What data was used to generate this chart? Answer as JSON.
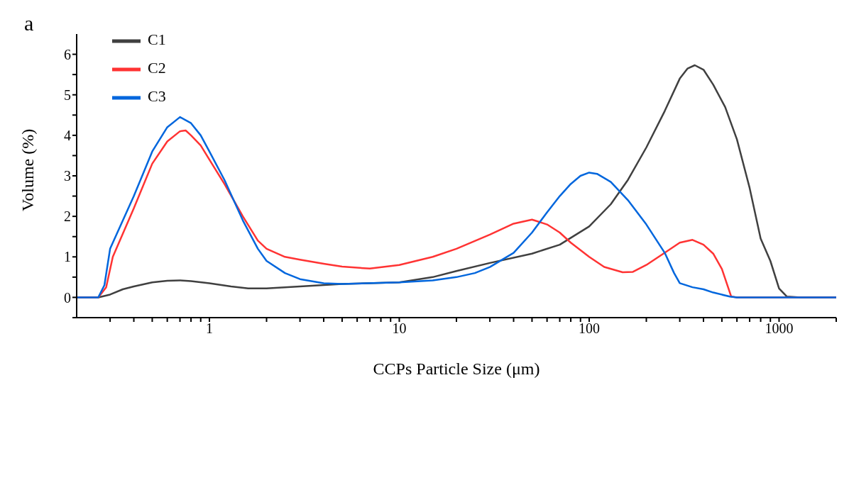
{
  "chart_data": {
    "type": "line",
    "xlabel": "CCPs Particle Size (μm)",
    "ylabel": "Volume (%)",
    "annotations": [
      "a"
    ],
    "log": "x",
    "grid": false,
    "legend": "top left",
    "xlim": [
      0.2,
      2000
    ],
    "xticks": [
      {
        "value": 0.3,
        "label": null
      },
      {
        "value": 0.4,
        "label": null
      },
      {
        "value": 0.5,
        "label": null
      },
      {
        "value": 0.6,
        "label": null
      },
      {
        "value": 0.7,
        "label": null
      },
      {
        "value": 0.8,
        "label": null
      },
      {
        "value": 0.9,
        "label": null
      },
      1,
      {
        "value": 2,
        "label": null
      },
      {
        "value": 3,
        "label": null
      },
      {
        "value": 4,
        "label": null
      },
      {
        "value": 5,
        "label": null
      },
      {
        "value": 6,
        "label": null
      },
      {
        "value": 7,
        "label": null
      },
      {
        "value": 8,
        "label": null
      },
      {
        "value": 9,
        "label": null
      },
      10,
      {
        "value": 20,
        "label": null
      },
      {
        "value": 30,
        "label": null
      },
      {
        "value": 40,
        "label": null
      },
      {
        "value": 50,
        "label": null
      },
      {
        "value": 60,
        "label": null
      },
      {
        "value": 70,
        "label": null
      },
      {
        "value": 80,
        "label": null
      },
      {
        "value": 90,
        "label": null
      },
      100,
      {
        "value": 200,
        "label": null
      },
      {
        "value": 300,
        "label": null
      },
      {
        "value": 400,
        "label": null
      },
      {
        "value": 500,
        "label": null
      },
      {
        "value": 600,
        "label": null
      },
      {
        "value": 700,
        "label": null
      },
      {
        "value": 800,
        "label": null
      },
      {
        "value": 900,
        "label": null
      },
      1000,
      {
        "value": 2000,
        "label": null
      }
    ],
    "ylim": [
      -0.5,
      6.5
    ],
    "yticks": [
      {
        "value": -0.5,
        "label": null
      },
      0,
      {
        "value": 0.5,
        "label": null
      },
      1,
      {
        "value": 1.5,
        "label": null
      },
      2,
      {
        "value": 2.5,
        "label": null
      },
      3,
      {
        "value": 3.5,
        "label": null
      },
      4,
      {
        "value": 4.5,
        "label": null
      },
      5,
      {
        "value": 5.5,
        "label": null
      },
      6
    ],
    "series": [
      {
        "name": "C1",
        "color": "#404040",
        "x": [
          0.2,
          0.26,
          0.3,
          0.35,
          0.4,
          0.5,
          0.6,
          0.7,
          0.8,
          1,
          1.3,
          1.6,
          2,
          3,
          5,
          10,
          15,
          20,
          30,
          50,
          70,
          100,
          130,
          160,
          200,
          250,
          300,
          330,
          360,
          400,
          450,
          520,
          600,
          700,
          800,
          900,
          1000,
          1100,
          1300,
          2000
        ],
        "values": [
          0,
          0,
          0.07,
          0.2,
          0.27,
          0.37,
          0.41,
          0.42,
          0.4,
          0.35,
          0.27,
          0.22,
          0.22,
          0.27,
          0.33,
          0.37,
          0.5,
          0.65,
          0.85,
          1.08,
          1.3,
          1.75,
          2.3,
          2.9,
          3.7,
          4.6,
          5.4,
          5.65,
          5.73,
          5.62,
          5.25,
          4.7,
          3.9,
          2.7,
          1.45,
          0.9,
          0.22,
          0.02,
          0,
          0
        ]
      },
      {
        "name": "C2",
        "color": "#ff3333",
        "x": [
          0.2,
          0.26,
          0.286,
          0.31,
          0.4,
          0.5,
          0.6,
          0.7,
          0.75,
          0.8,
          0.9,
          1,
          1.2,
          1.5,
          1.8,
          2,
          2.5,
          3,
          4,
          5,
          7,
          10,
          15,
          20,
          30,
          40,
          50,
          60,
          70,
          80,
          100,
          120,
          150,
          170,
          200,
          250,
          300,
          350,
          400,
          450,
          500,
          560,
          600,
          2000
        ],
        "values": [
          0,
          0,
          0.25,
          1.0,
          2.2,
          3.3,
          3.85,
          4.1,
          4.12,
          4.0,
          3.75,
          3.4,
          2.8,
          2.0,
          1.4,
          1.2,
          1.0,
          0.93,
          0.83,
          0.76,
          0.71,
          0.8,
          1.0,
          1.2,
          1.55,
          1.82,
          1.92,
          1.8,
          1.6,
          1.35,
          1.0,
          0.75,
          0.62,
          0.63,
          0.8,
          1.1,
          1.35,
          1.42,
          1.3,
          1.08,
          0.7,
          0.02,
          0,
          0
        ]
      },
      {
        "name": "C3",
        "color": "#0066dd",
        "x": [
          0.2,
          0.26,
          0.28,
          0.3,
          0.4,
          0.5,
          0.6,
          0.7,
          0.8,
          0.9,
          1,
          1.2,
          1.5,
          1.8,
          2,
          2.5,
          3,
          4,
          5,
          10,
          15,
          20,
          25,
          30,
          40,
          50,
          60,
          70,
          80,
          90,
          100,
          110,
          130,
          160,
          200,
          250,
          280,
          300,
          350,
          400,
          450,
          550,
          600,
          2000
        ],
        "values": [
          0,
          0,
          0.3,
          1.2,
          2.5,
          3.6,
          4.2,
          4.45,
          4.3,
          4.0,
          3.6,
          2.9,
          1.9,
          1.2,
          0.9,
          0.6,
          0.45,
          0.35,
          0.33,
          0.37,
          0.42,
          0.5,
          0.6,
          0.75,
          1.1,
          1.6,
          2.1,
          2.5,
          2.8,
          3.0,
          3.08,
          3.05,
          2.85,
          2.4,
          1.8,
          1.1,
          0.6,
          0.35,
          0.25,
          0.2,
          0.12,
          0.02,
          0,
          0
        ]
      }
    ]
  }
}
